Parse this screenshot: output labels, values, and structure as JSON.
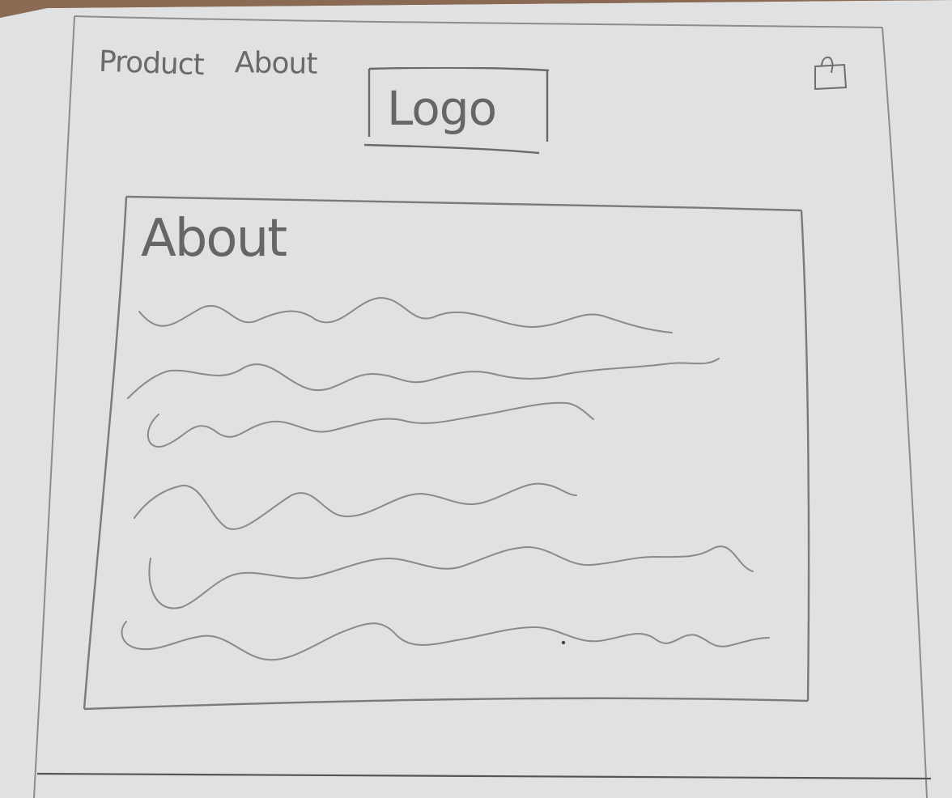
{
  "nav": {
    "items": [
      {
        "label": "Product"
      },
      {
        "label": "About"
      }
    ]
  },
  "header": {
    "logo_text": "Logo",
    "cart_icon": "shopping-bag-icon"
  },
  "main": {
    "panel": {
      "title": "About",
      "placeholder_lines": 6
    }
  },
  "colors": {
    "paper": "#dfe0e1",
    "pencil": "#7a7a7a",
    "desk": "#8a6a52"
  }
}
